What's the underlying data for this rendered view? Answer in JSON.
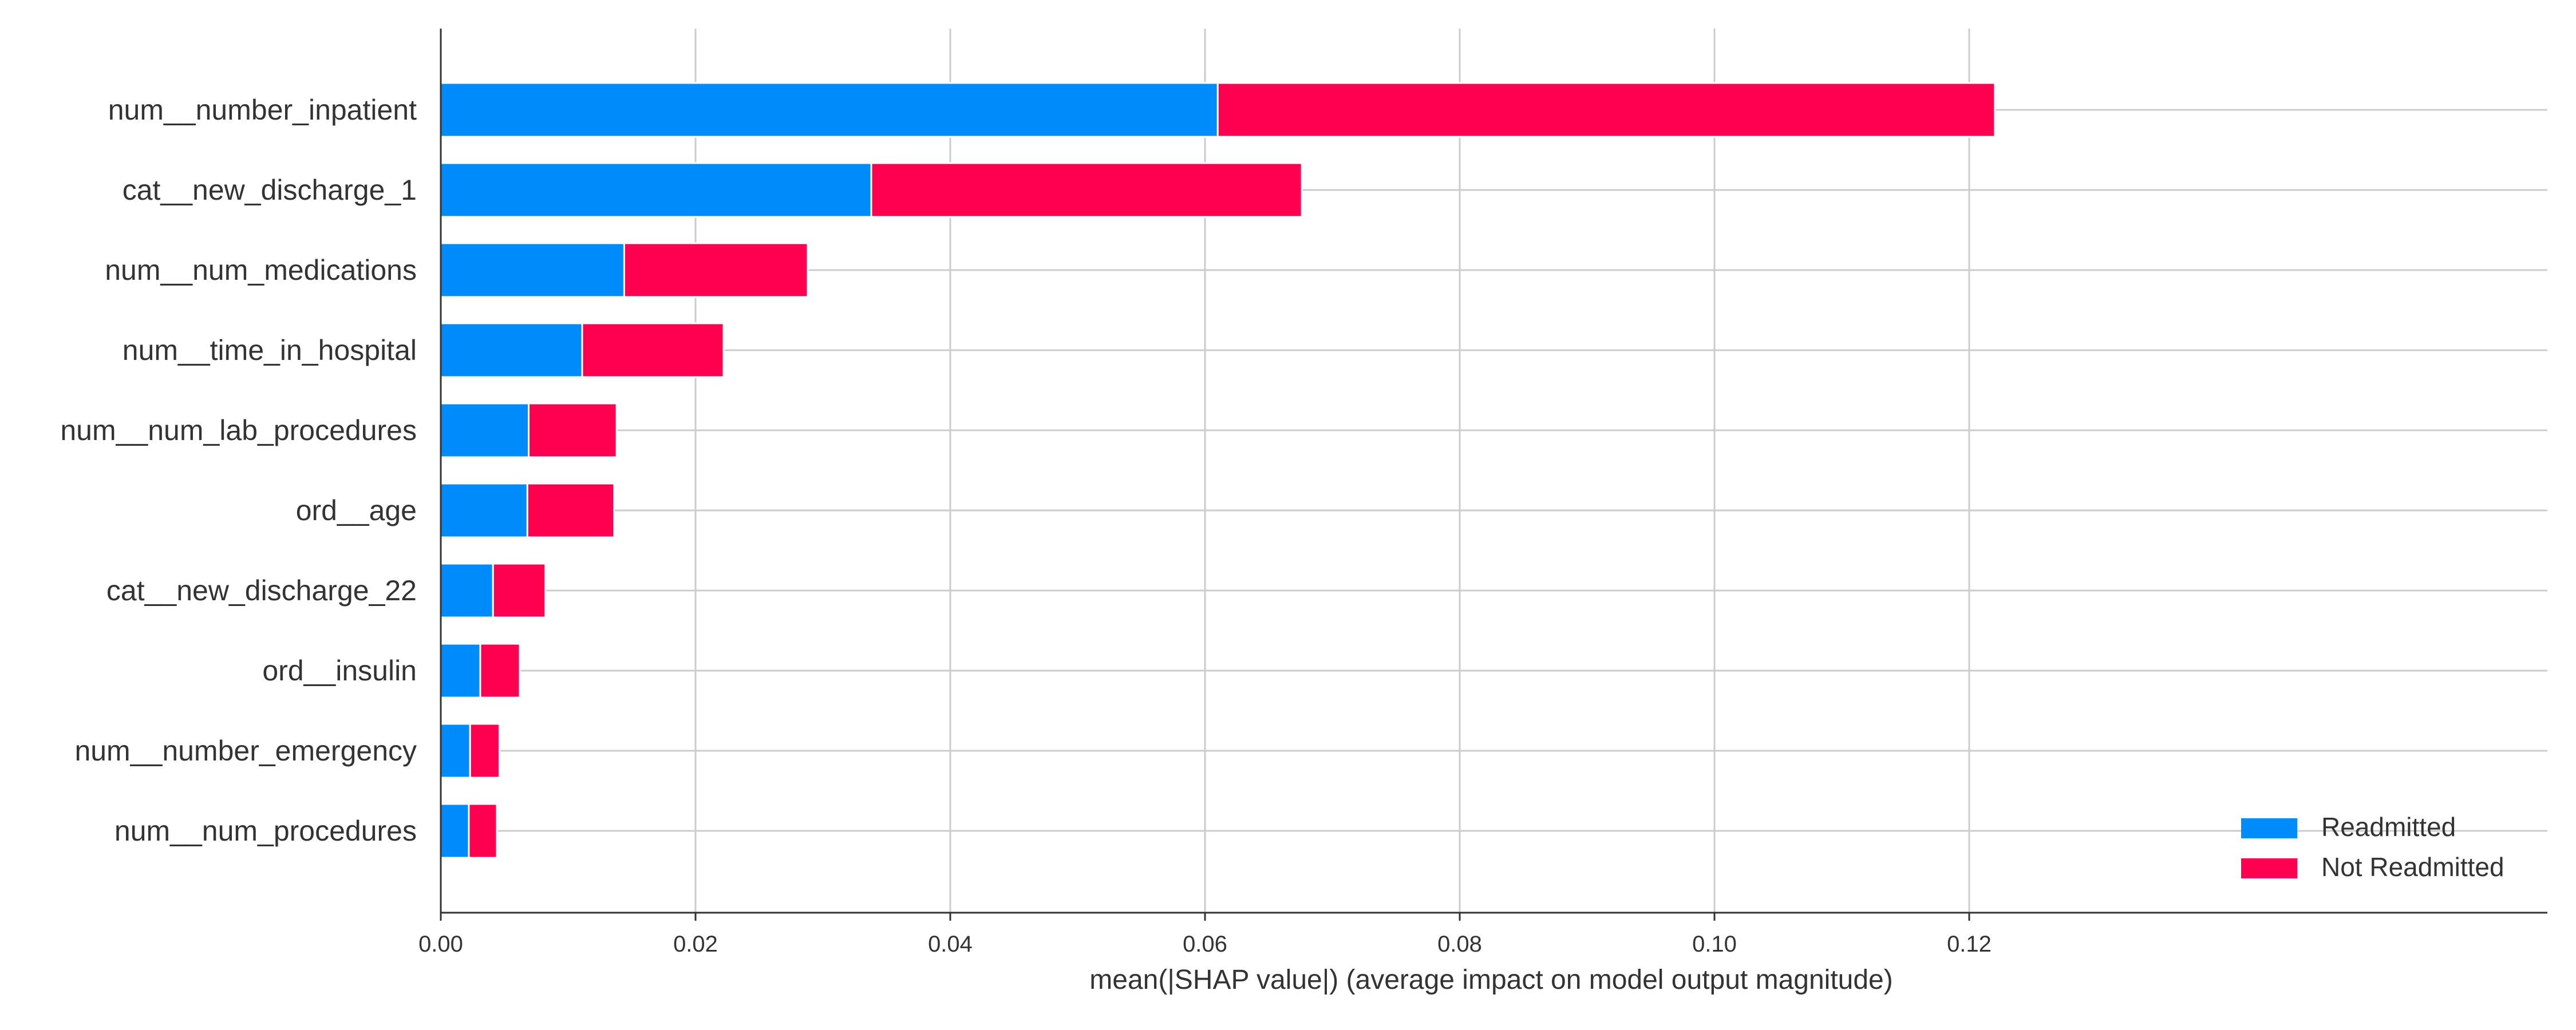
{
  "chart_data": {
    "type": "bar",
    "stacked": true,
    "orientation": "horizontal",
    "title": "",
    "xlabel": "mean(|SHAP value|) (average impact on model output magnitude)",
    "ylabel": "",
    "xlim": [
      0,
      0.128
    ],
    "xticks": [
      "0.00",
      "0.02",
      "0.04",
      "0.06",
      "0.08",
      "0.10",
      "0.12"
    ],
    "xtick_values": [
      0,
      0.02,
      0.04,
      0.06,
      0.08,
      0.1,
      0.12
    ],
    "grid": true,
    "legend_position": "bottom-right",
    "categories": [
      "num__number_inpatient",
      "cat__new_discharge_1",
      "num__num_medications",
      "num__time_in_hospital",
      "num__num_lab_procedures",
      "ord__age",
      "cat__new_discharge_22",
      "ord__insulin",
      "num__number_emergency",
      "num__num_procedures"
    ],
    "series": [
      {
        "name": "Readmitted",
        "color": "#008bfb",
        "values": [
          0.061,
          0.0338,
          0.0144,
          0.0111,
          0.0069,
          0.0068,
          0.0041,
          0.0031,
          0.0023,
          0.0022
        ]
      },
      {
        "name": "Not Readmitted",
        "color": "#ff0051",
        "values": [
          0.061,
          0.0338,
          0.0144,
          0.0111,
          0.0069,
          0.0068,
          0.0041,
          0.0031,
          0.0023,
          0.0022
        ]
      }
    ]
  }
}
